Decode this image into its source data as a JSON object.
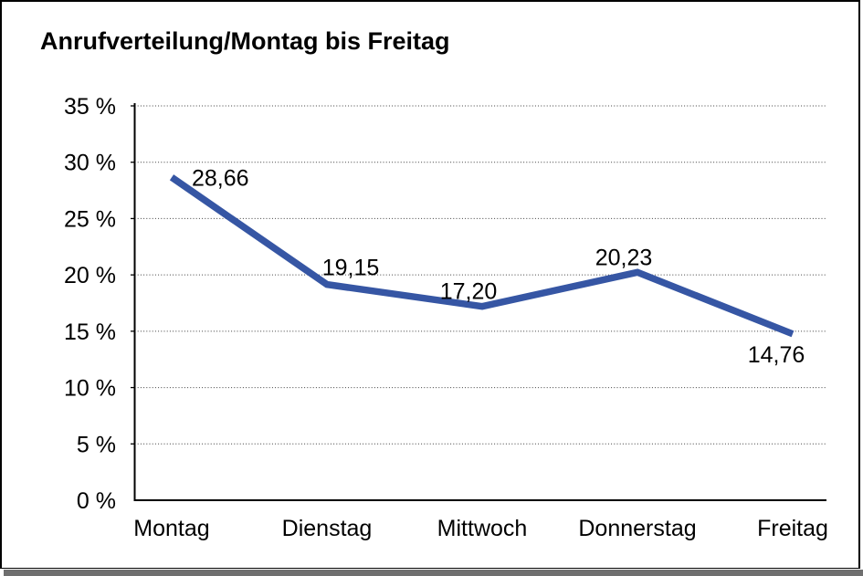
{
  "window": {
    "background_color": "#ffffff",
    "frame_border_color": "#000000",
    "frame_shadow_color": "#6f6f6f"
  },
  "chart_data": {
    "type": "line",
    "title": "Anrufverteilung/Montag bis Freitag",
    "categories": [
      "Montag",
      "Dienstag",
      "Mittwoch",
      "Donnerstag",
      "Freitag"
    ],
    "series": [
      {
        "name": "Anrufverteilung",
        "values": [
          28.66,
          19.15,
          17.2,
          20.23,
          14.76
        ],
        "value_labels": [
          "28,66",
          "19,15",
          "17,20",
          "20,23",
          "14,76"
        ],
        "color": "#3656A4",
        "stroke_width": 7.5
      }
    ],
    "xlabel": "",
    "ylabel": "",
    "ylim": [
      0,
      35
    ],
    "yticks": [
      {
        "value": 0,
        "label": "0 %"
      },
      {
        "value": 5,
        "label": "5 %"
      },
      {
        "value": 10,
        "label": "10 %"
      },
      {
        "value": 15,
        "label": "15 %"
      },
      {
        "value": 20,
        "label": "20 %"
      },
      {
        "value": 25,
        "label": "25 %"
      },
      {
        "value": 30,
        "label": "30 %"
      },
      {
        "value": 35,
        "label": "35 %"
      }
    ],
    "grid": "horizontal-dotted",
    "grid_color": "#3c3c3c",
    "axis_color": "#000000",
    "legend": "none"
  }
}
